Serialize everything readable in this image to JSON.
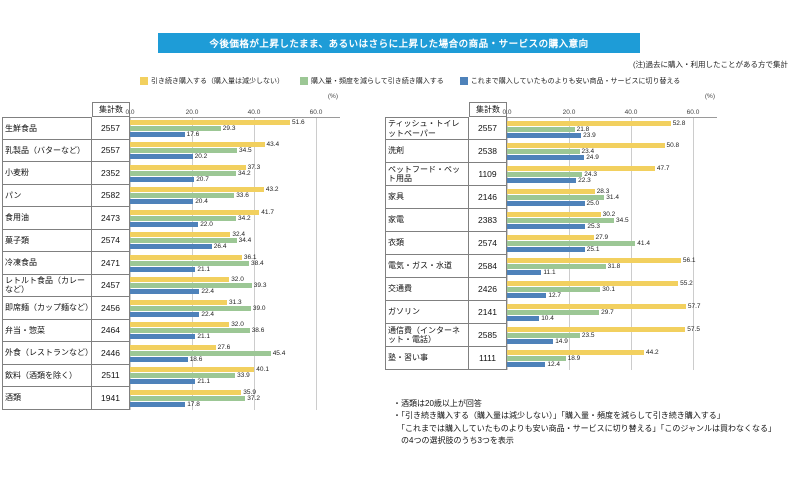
{
  "title": "今後価格が上昇したまま、あるいはさらに上昇した場合の商品・サービスの購入意向",
  "note_top": "(注)過去に購入・利用したことがある方で集計",
  "count_header": "集計数",
  "percent_label": "(%)",
  "axis_ticks": [
    "0.0",
    "20.0",
    "40.0",
    "60.0"
  ],
  "colors": {
    "title_bg": "#1E9CD7",
    "continue": "#F2D05F",
    "reduce": "#9CC795",
    "switch": "#4E82BA"
  },
  "legend": [
    {
      "label": "引き続き購入する（購入量は減少しない）",
      "color_key": "continue"
    },
    {
      "label": "購入量・頻度を減らして引き続き購入する",
      "color_key": "reduce"
    },
    {
      "label": "これまで購入していたものよりも安い商品・サービスに切り替える",
      "color_key": "switch"
    }
  ],
  "footnotes": [
    "・酒類は20歳以上が回答",
    "・「引き続き購入する（購入量は減少しない）」「購入量・頻度を減らして引き続き購入する」",
    "　「これまでは購入していたものよりも安い商品・サービスに切り替える」「このジャンルは買わなくなる」",
    "　の4つの選択肢のうち3つを表示"
  ],
  "chart_data": [
    {
      "type": "bar",
      "orientation": "horizontal",
      "xlim": [
        0,
        60
      ],
      "unit": "%",
      "grid": true,
      "categories": [
        {
          "label": "生鮮食品",
          "count": 2557
        },
        {
          "label": "乳製品（バターなど）",
          "count": 2557
        },
        {
          "label": "小麦粉",
          "count": 2352
        },
        {
          "label": "パン",
          "count": 2582
        },
        {
          "label": "食用油",
          "count": 2473
        },
        {
          "label": "菓子類",
          "count": 2574
        },
        {
          "label": "冷凍食品",
          "count": 2471
        },
        {
          "label": "レトルト食品（カレーなど）",
          "count": 2457
        },
        {
          "label": "即席麺（カップ麺など）",
          "count": 2456
        },
        {
          "label": "弁当・惣菜",
          "count": 2464
        },
        {
          "label": "外食（レストランなど）",
          "count": 2446
        },
        {
          "label": "飲料（酒類を除く）",
          "count": 2511
        },
        {
          "label": "酒類",
          "count": 1941
        }
      ],
      "series": [
        {
          "name": "引き続き購入する（購入量は減少しない）",
          "color_key": "continue",
          "values": [
            51.6,
            43.4,
            37.3,
            43.2,
            41.7,
            32.4,
            36.1,
            32.0,
            31.3,
            32.0,
            27.6,
            40.1,
            35.9
          ]
        },
        {
          "name": "購入量・頻度を減らして引き続き購入する",
          "color_key": "reduce",
          "values": [
            29.3,
            34.5,
            34.2,
            33.6,
            34.2,
            34.4,
            38.4,
            39.3,
            39.0,
            38.6,
            45.4,
            33.9,
            37.2
          ]
        },
        {
          "name": "これまで購入していたものよりも安い商品・サービスに切り替える",
          "color_key": "switch",
          "values": [
            17.6,
            20.2,
            20.7,
            20.4,
            22.0,
            26.4,
            21.1,
            22.4,
            22.4,
            21.1,
            18.6,
            21.1,
            17.8
          ]
        }
      ]
    },
    {
      "type": "bar",
      "orientation": "horizontal",
      "xlim": [
        0,
        60
      ],
      "unit": "%",
      "grid": true,
      "categories": [
        {
          "label": "ティッシュ・トイレットペーパー",
          "count": 2557
        },
        {
          "label": "洗剤",
          "count": 2538
        },
        {
          "label": "ペットフード・ペット用品",
          "count": 1109
        },
        {
          "label": "家具",
          "count": 2146
        },
        {
          "label": "家電",
          "count": 2383
        },
        {
          "label": "衣類",
          "count": 2574
        },
        {
          "label": "電気・ガス・水道",
          "count": 2584
        },
        {
          "label": "交通費",
          "count": 2426
        },
        {
          "label": "ガソリン",
          "count": 2141
        },
        {
          "label": "通信費（インターネット・電話）",
          "count": 2585
        },
        {
          "label": "塾・習い事",
          "count": 1111
        }
      ],
      "series": [
        {
          "name": "引き続き購入する（購入量は減少しない）",
          "color_key": "continue",
          "values": [
            52.8,
            50.8,
            47.7,
            28.3,
            30.2,
            27.9,
            56.1,
            55.2,
            57.7,
            57.5,
            44.2
          ]
        },
        {
          "name": "購入量・頻度を減らして引き続き購入する",
          "color_key": "reduce",
          "values": [
            21.8,
            23.4,
            24.3,
            31.4,
            34.5,
            41.4,
            31.8,
            30.1,
            29.7,
            23.5,
            18.9
          ]
        },
        {
          "name": "これまで購入していたものよりも安い商品・サービスに切り替える",
          "color_key": "switch",
          "values": [
            23.9,
            24.9,
            22.3,
            25.0,
            25.3,
            25.1,
            11.1,
            12.7,
            10.4,
            14.9,
            12.4
          ]
        }
      ]
    }
  ]
}
